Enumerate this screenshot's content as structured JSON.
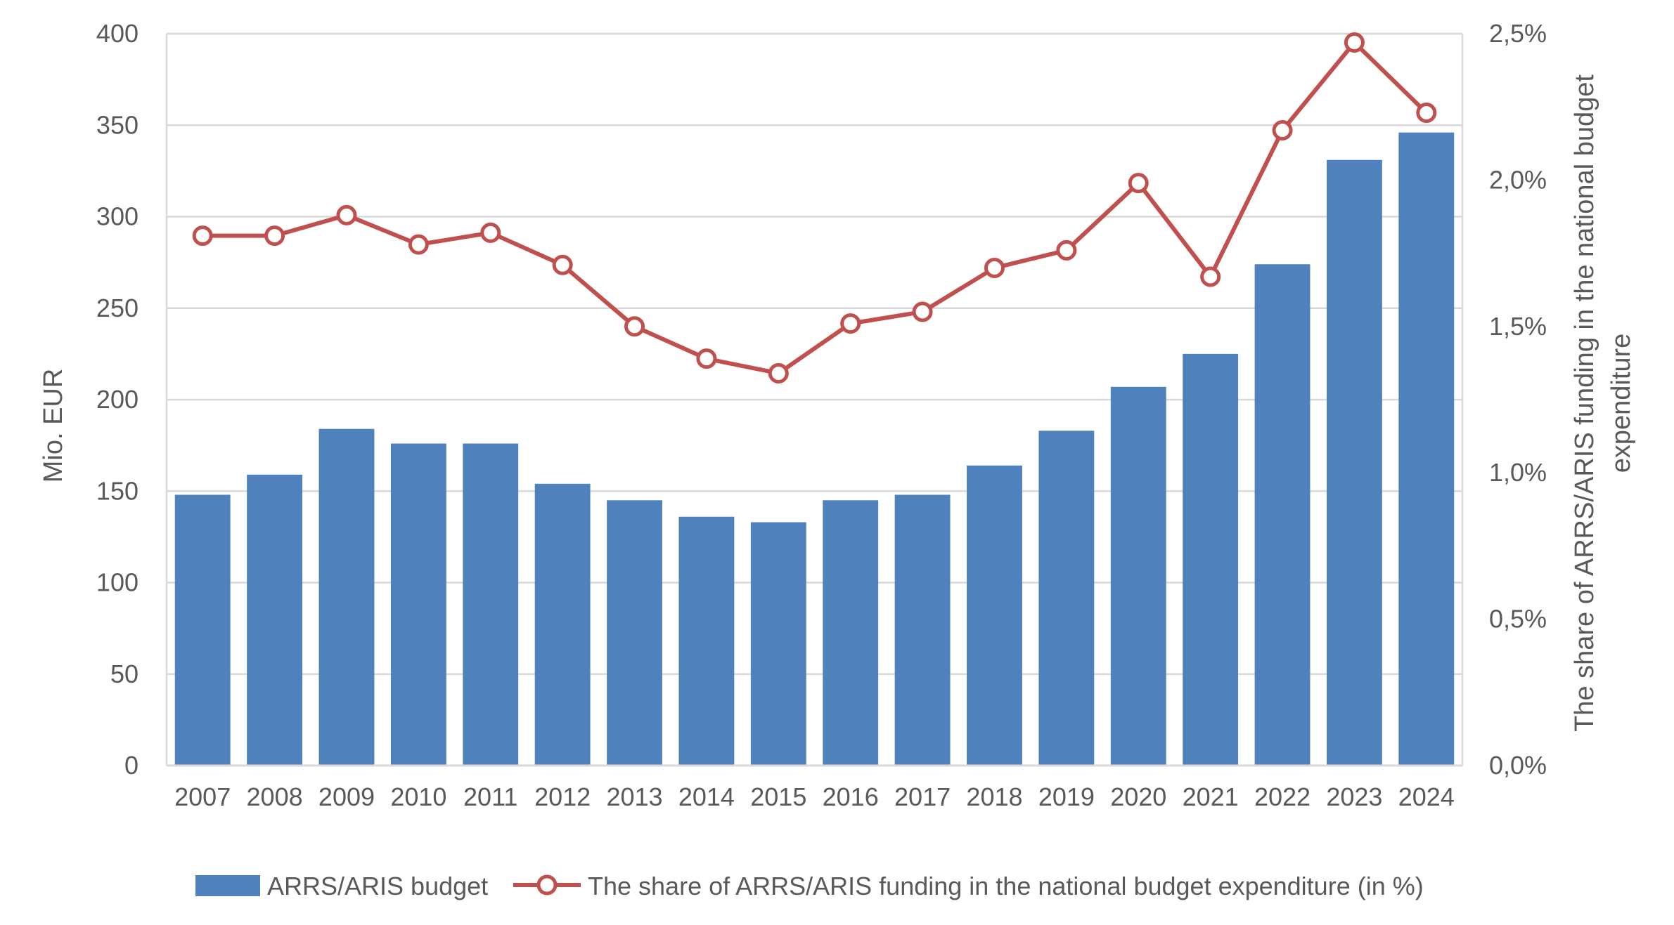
{
  "chart_data": {
    "type": "bar",
    "categories": [
      "2007",
      "2008",
      "2009",
      "2010",
      "2011",
      "2012",
      "2013",
      "2014",
      "2015",
      "2016",
      "2017",
      "2018",
      "2019",
      "2020",
      "2021",
      "2022",
      "2023",
      "2024"
    ],
    "series": [
      {
        "name": "ARRS/ARIS budget",
        "type": "bar",
        "axis": "left",
        "color": "#4f81bd",
        "values": [
          148,
          159,
          184,
          176,
          176,
          154,
          145,
          136,
          133,
          145,
          148,
          164,
          183,
          207,
          225,
          274,
          331,
          346
        ]
      },
      {
        "name": "The share of ARRS/ARIS funding in the national budget expenditure (in %)",
        "type": "line",
        "axis": "right",
        "color": "#c0504d",
        "marker": "open-circle",
        "values": [
          1.81,
          1.81,
          1.88,
          1.78,
          1.82,
          1.71,
          1.5,
          1.39,
          1.34,
          1.51,
          1.55,
          1.7,
          1.76,
          1.99,
          1.67,
          2.17,
          2.47,
          2.23
        ]
      }
    ],
    "left_axis": {
      "label": "Mio. EUR",
      "min": 0,
      "max": 400,
      "step": 50,
      "ticks": [
        "0",
        "50",
        "100",
        "150",
        "200",
        "250",
        "300",
        "350",
        "400"
      ]
    },
    "right_axis": {
      "label_lines": [
        "The share of ARRS/ARIS funding in the national budget",
        "expenditure"
      ],
      "min": 0,
      "max": 2.5,
      "ticks": [
        "0,0%",
        "0,5%",
        "1,0%",
        "1,5%",
        "2,0%",
        "2,5%"
      ]
    },
    "grid": true,
    "legend": {
      "position": "bottom",
      "items": [
        {
          "label": "ARRS/ARIS budget",
          "kind": "bar",
          "color": "#4f81bd"
        },
        {
          "label": "The share of ARRS/ARIS funding in the national budget expenditure (in %)",
          "kind": "line",
          "color": "#c0504d"
        }
      ]
    }
  }
}
